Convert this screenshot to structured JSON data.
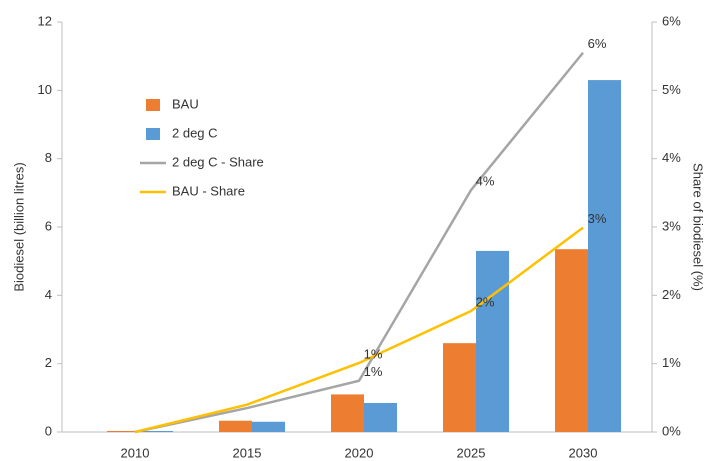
{
  "chart_data": {
    "type": "bar-line",
    "y_label": "Biodiesel (billion litres)",
    "y2_label": "Share of biodiesel (%)",
    "categories": [
      "2010",
      "2015",
      "2020",
      "2025",
      "2030"
    ],
    "ylim": [
      0,
      12
    ],
    "yticks": [
      0,
      2,
      4,
      6,
      8,
      10,
      12
    ],
    "y2lim": [
      0,
      6
    ],
    "y2ticks": [
      {
        "value": 0,
        "label": "0%"
      },
      {
        "value": 1,
        "label": "1%"
      },
      {
        "value": 2,
        "label": "2%"
      },
      {
        "value": 3,
        "label": "3%"
      },
      {
        "value": 4,
        "label": "4%"
      },
      {
        "value": 5,
        "label": "5%"
      },
      {
        "value": 6,
        "label": "6%"
      }
    ],
    "grid": false,
    "series": [
      {
        "name": "BAU",
        "kind": "bar",
        "color": "#ed7d31",
        "values": [
          0.03,
          0.33,
          1.1,
          2.6,
          5.35
        ]
      },
      {
        "name": "2 deg C",
        "kind": "bar",
        "color": "#5b9bd5",
        "values": [
          0.03,
          0.3,
          0.85,
          5.3,
          10.3
        ]
      },
      {
        "name": "2 deg C - Share",
        "kind": "line",
        "axis": "y2",
        "color": "#a5a5a5",
        "values": [
          0,
          0.35,
          0.75,
          3.54,
          5.55
        ],
        "value_labels": [
          null,
          null,
          "1%",
          "4%",
          "6%"
        ]
      },
      {
        "name": "BAU - Share",
        "kind": "line",
        "axis": "y2",
        "color": "#ffc000",
        "values": [
          0,
          0.4,
          1.01,
          1.77,
          2.99
        ],
        "value_labels": [
          null,
          null,
          "1%",
          "2%",
          "3%"
        ]
      }
    ]
  }
}
